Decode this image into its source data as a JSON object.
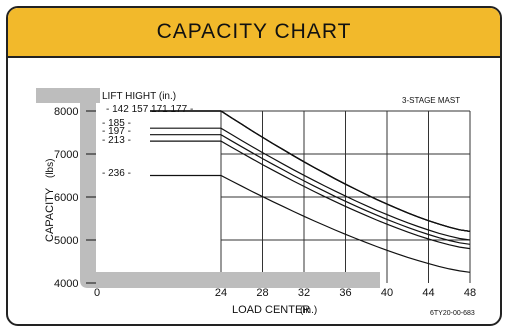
{
  "chart_data": {
    "type": "line",
    "title": "CAPACITY CHART",
    "subtitle": "3-STAGE MAST",
    "code": "6TY20-00-683",
    "xlabel": "LOAD CENTER",
    "xunit": "(in.)",
    "ylabel": "CAPACITY",
    "yunit": "(lbs)",
    "legend_title": "LIFT HIGHT (in.)",
    "xlim": [
      0,
      48
    ],
    "ylim": [
      4000,
      8000
    ],
    "xticks": [
      "24",
      "28",
      "32",
      "36",
      "40",
      "44",
      "48"
    ],
    "x_zero_label": "0",
    "yticks": [
      "4000",
      "5000",
      "6000",
      "7000",
      "8000"
    ],
    "grid": true,
    "series": [
      {
        "name": "142",
        "x": [
          24,
          48
        ],
        "y": [
          8000,
          5200
        ]
      },
      {
        "name": "157",
        "x": [
          24,
          48
        ],
        "y": [
          8000,
          5200
        ]
      },
      {
        "name": "171",
        "x": [
          24,
          48
        ],
        "y": [
          8000,
          5200
        ]
      },
      {
        "name": "177",
        "x": [
          24,
          48
        ],
        "y": [
          8000,
          5200
        ]
      },
      {
        "name": "185",
        "x": [
          24,
          48
        ],
        "y": [
          7600,
          5000
        ]
      },
      {
        "name": "197",
        "x": [
          24,
          48
        ],
        "y": [
          7450,
          4900
        ]
      },
      {
        "name": "213",
        "x": [
          24,
          48
        ],
        "y": [
          7300,
          4800
        ]
      },
      {
        "name": "236",
        "x": [
          24,
          48
        ],
        "y": [
          6500,
          4250
        ]
      }
    ]
  }
}
